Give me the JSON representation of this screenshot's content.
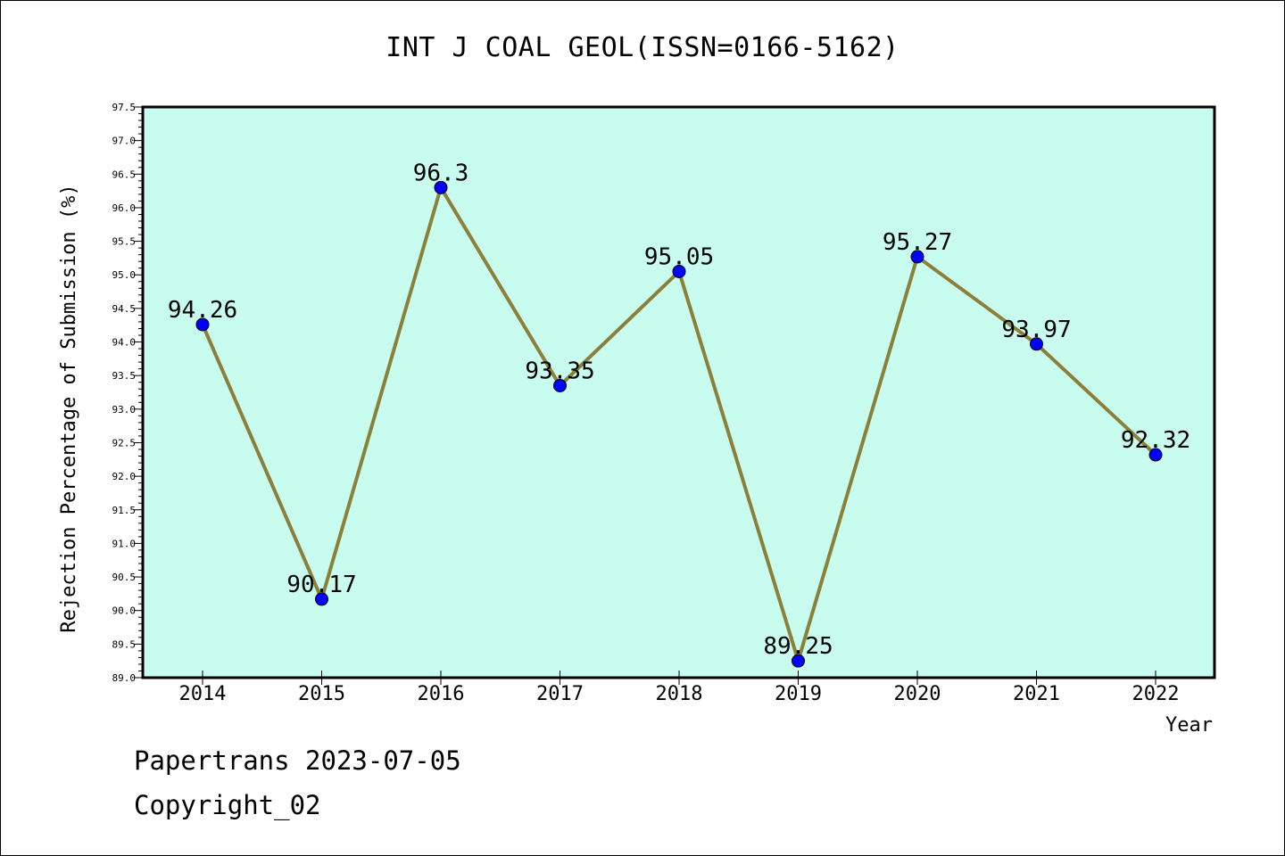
{
  "chart_data": {
    "type": "line",
    "title": "INT J COAL GEOL(ISSN=0166-5162)",
    "xlabel": "Year",
    "ylabel": "Rejection Percentage of Submission (%)",
    "categories": [
      "2014",
      "2015",
      "2016",
      "2017",
      "2018",
      "2019",
      "2020",
      "2021",
      "2022"
    ],
    "values": [
      94.26,
      90.17,
      96.3,
      93.35,
      95.05,
      89.25,
      95.27,
      93.97,
      92.32
    ],
    "data_labels": [
      "94.26",
      "90.17",
      "96.3",
      "93.35",
      "95.05",
      "89.25",
      "95.27",
      "93.97",
      "92.32"
    ],
    "ylim": [
      89.0,
      97.5
    ],
    "yticks": [
      "89.0",
      "89.5",
      "90.0",
      "90.5",
      "91.0",
      "91.5",
      "92.0",
      "92.5",
      "93.0",
      "93.5",
      "94.0",
      "94.5",
      "95.0",
      "95.5",
      "96.0",
      "96.5",
      "97.0",
      "97.5"
    ],
    "grid": false,
    "colors": {
      "plot_background": "#c8fcee",
      "line": "#8b7f3a",
      "marker": "#0000ff"
    }
  },
  "footer": {
    "line1": "Papertrans 2023-07-05",
    "line2": "Copyright_02"
  }
}
